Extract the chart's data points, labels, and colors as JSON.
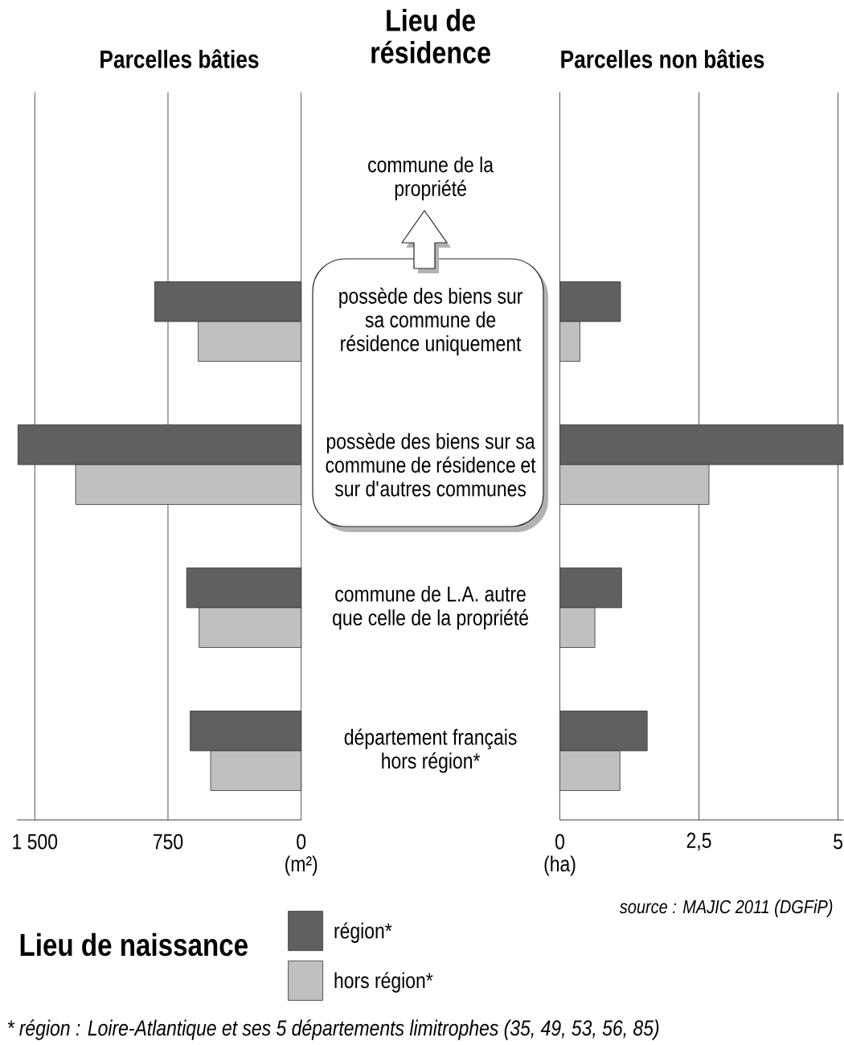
{
  "chart_data": [
    {
      "type": "bar",
      "orientation": "horizontal",
      "title": "Parcelles bâties",
      "ylabel": "Lieu de résidence",
      "xlabel": "(m²)",
      "categories": [
        "commune de la propriété",
        "possède des biens sur sa commune de résidence uniquement",
        "possède des biens sur sa commune de résidence et sur d'autres communes",
        "commune de L.A. autre que celle de la propriété",
        "département français hors région*"
      ],
      "series": [
        {
          "name": "région*",
          "color": "#606060",
          "values": [
            null,
            825,
            1595,
            645,
            625
          ]
        },
        {
          "name": "hors région*",
          "color": "#c0c0c0",
          "values": [
            null,
            580,
            1270,
            575,
            510
          ]
        }
      ],
      "xlim": [
        1600,
        0
      ],
      "xticks": [
        {
          "value": 1500,
          "label": "1 500"
        },
        750,
        0
      ],
      "grid": "x",
      "legend": "bottom right",
      "legend_title": "Lieu de naissance",
      "annotations": [
        "* région : Loire-Atlantique et ses 5 départements limitrophes (35, 49, 53, 56, 85)"
      ]
    },
    {
      "type": "bar",
      "orientation": "horizontal",
      "title": "Parcelles non bâties",
      "xlabel": "(ha)",
      "categories": [
        null,
        null,
        null,
        null,
        null
      ],
      "series": [
        {
          "color": "#606060",
          "values": [
            null,
            1.09,
            5.09,
            1.11,
            1.57
          ]
        },
        {
          "color": "#c0c0c0",
          "values": [
            null,
            0.36,
            2.68,
            0.63,
            1.08
          ]
        }
      ],
      "xlim": [
        0,
        5.1
      ],
      "xticks": [
        0,
        {
          "value": 2.5,
          "label": "2,5"
        },
        5
      ],
      "grid": "x",
      "tick_labels": "x",
      "annotations": [
        "source : MAJIC 2011 (DGFiP)"
      ]
    }
  ]
}
